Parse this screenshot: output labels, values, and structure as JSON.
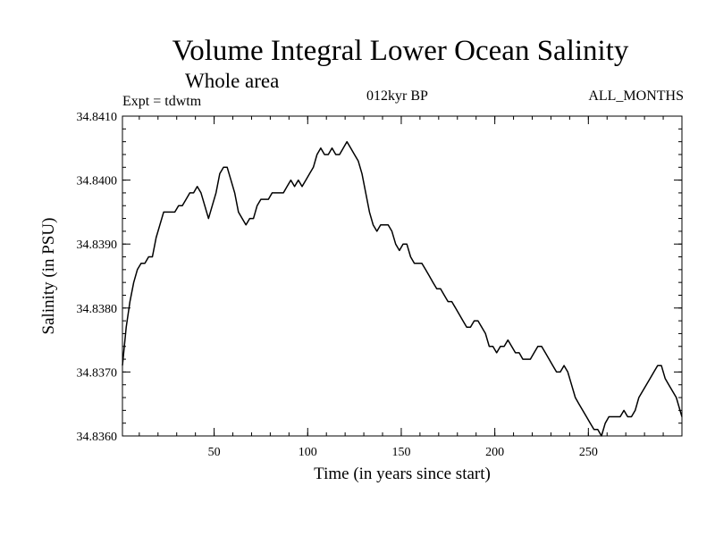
{
  "chart_data": {
    "type": "line",
    "title": "Volume Integral Lower Ocean Salinity",
    "subtitle": "Whole area",
    "experiment": "Expt = tdwtm",
    "period": "012kyr BP",
    "season": "ALL_MONTHS",
    "xlabel": "Time (in years since start)",
    "ylabel": "Salinity (in PSU)",
    "xlim": [
      1,
      300
    ],
    "ylim": [
      34.836,
      34.841
    ],
    "xticks": [
      {
        "value": 50,
        "label": "50"
      },
      {
        "value": 100,
        "label": "100"
      },
      {
        "value": 150,
        "label": "150"
      },
      {
        "value": 200,
        "label": "200"
      },
      {
        "value": 250,
        "label": "250"
      }
    ],
    "yticks": [
      {
        "value": 34.836,
        "label": "34.8360"
      },
      {
        "value": 34.837,
        "label": "34.8370"
      },
      {
        "value": 34.838,
        "label": "34.8380"
      },
      {
        "value": 34.839,
        "label": "34.8390"
      },
      {
        "value": 34.84,
        "label": "34.8400"
      },
      {
        "value": 34.841,
        "label": "34.8410"
      }
    ],
    "series": [
      {
        "name": "salinity",
        "color": "#000000",
        "x": [
          1,
          3,
          5,
          7,
          9,
          11,
          13,
          15,
          17,
          19,
          21,
          23,
          25,
          27,
          29,
          31,
          33,
          35,
          37,
          39,
          41,
          43,
          45,
          47,
          49,
          51,
          53,
          55,
          57,
          59,
          61,
          63,
          65,
          67,
          69,
          71,
          73,
          75,
          77,
          79,
          81,
          83,
          85,
          87,
          89,
          91,
          93,
          95,
          97,
          99,
          101,
          103,
          105,
          107,
          109,
          111,
          113,
          115,
          117,
          119,
          121,
          123,
          125,
          127,
          129,
          131,
          133,
          135,
          137,
          139,
          141,
          143,
          145,
          147,
          149,
          151,
          153,
          155,
          157,
          159,
          161,
          163,
          165,
          167,
          169,
          171,
          173,
          175,
          177,
          179,
          181,
          183,
          185,
          187,
          189,
          191,
          193,
          195,
          197,
          199,
          201,
          203,
          205,
          207,
          209,
          211,
          213,
          215,
          217,
          219,
          221,
          223,
          225,
          227,
          229,
          231,
          233,
          235,
          237,
          239,
          241,
          243,
          245,
          247,
          249,
          251,
          253,
          255,
          257,
          259,
          261,
          263,
          265,
          267,
          269,
          271,
          273,
          275,
          277,
          279,
          281,
          283,
          285,
          287,
          289,
          291,
          293,
          295,
          297,
          299,
          300
        ],
        "values": [
          34.8371,
          34.8377,
          34.8381,
          34.8384,
          34.8386,
          34.8387,
          34.8387,
          34.8388,
          34.8388,
          34.8391,
          34.8393,
          34.8395,
          34.8395,
          34.8395,
          34.8395,
          34.8396,
          34.8396,
          34.8397,
          34.8398,
          34.8398,
          34.8399,
          34.8398,
          34.8396,
          34.8394,
          34.8396,
          34.8398,
          34.8401,
          34.8402,
          34.8402,
          34.84,
          34.8398,
          34.8395,
          34.8394,
          34.8393,
          34.8394,
          34.8394,
          34.8396,
          34.8397,
          34.8397,
          34.8397,
          34.8398,
          34.8398,
          34.8398,
          34.8398,
          34.8399,
          34.84,
          34.8399,
          34.84,
          34.8399,
          34.84,
          34.8401,
          34.8402,
          34.8404,
          34.8405,
          34.8404,
          34.8404,
          34.8405,
          34.8404,
          34.8404,
          34.8405,
          34.8406,
          34.8405,
          34.8404,
          34.8403,
          34.8401,
          34.8398,
          34.8395,
          34.8393,
          34.8392,
          34.8393,
          34.8393,
          34.8393,
          34.8392,
          34.839,
          34.8389,
          34.839,
          34.839,
          34.8388,
          34.8387,
          34.8387,
          34.8387,
          34.8386,
          34.8385,
          34.8384,
          34.8383,
          34.8383,
          34.8382,
          34.8381,
          34.8381,
          34.838,
          34.8379,
          34.8378,
          34.8377,
          34.8377,
          34.8378,
          34.8378,
          34.8377,
          34.8376,
          34.8374,
          34.8374,
          34.8373,
          34.8374,
          34.8374,
          34.8375,
          34.8374,
          34.8373,
          34.8373,
          34.8372,
          34.8372,
          34.8372,
          34.8373,
          34.8374,
          34.8374,
          34.8373,
          34.8372,
          34.8371,
          34.837,
          34.837,
          34.8371,
          34.837,
          34.8368,
          34.8366,
          34.8365,
          34.8364,
          34.8363,
          34.8362,
          34.8361,
          34.8361,
          34.836,
          34.8362,
          34.8363,
          34.8363,
          34.8363,
          34.8363,
          34.8364,
          34.8363,
          34.8363,
          34.8364,
          34.8366,
          34.8367,
          34.8368,
          34.8369,
          34.837,
          34.8371,
          34.8371,
          34.8369,
          34.8368,
          34.8367,
          34.8366,
          34.8364,
          34.8363
        ]
      }
    ]
  }
}
